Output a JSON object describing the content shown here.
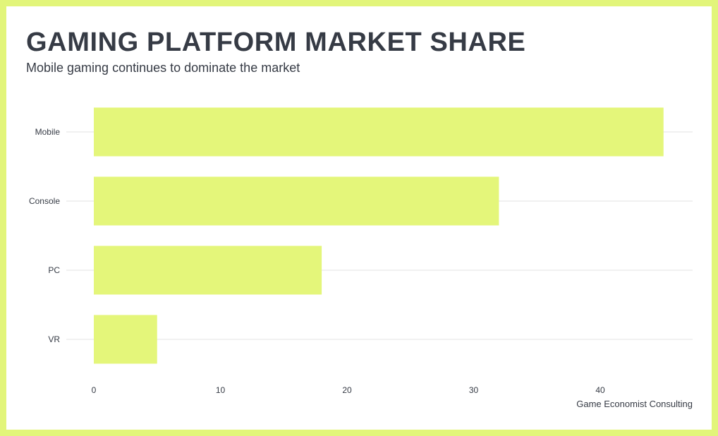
{
  "chart_data": {
    "type": "bar",
    "orientation": "horizontal",
    "title": "GAMING PLATFORM MARKET SHARE",
    "subtitle": "Mobile gaming continues to dominate the market",
    "caption": "Game Economist Consulting",
    "categories": [
      "Mobile",
      "Console",
      "PC",
      "VR"
    ],
    "values": [
      45,
      32,
      18,
      5
    ],
    "xlim": [
      0,
      47.5
    ],
    "xticks": [
      "0",
      "10",
      "20",
      "30",
      "40"
    ],
    "grid": "horizontal-major",
    "legend": "none",
    "colors": {
      "bar": "#e4f67a",
      "frame": "#e2f57a",
      "text": "#363b45",
      "grid": "#e3e3e3",
      "background": "#ffffff"
    }
  }
}
